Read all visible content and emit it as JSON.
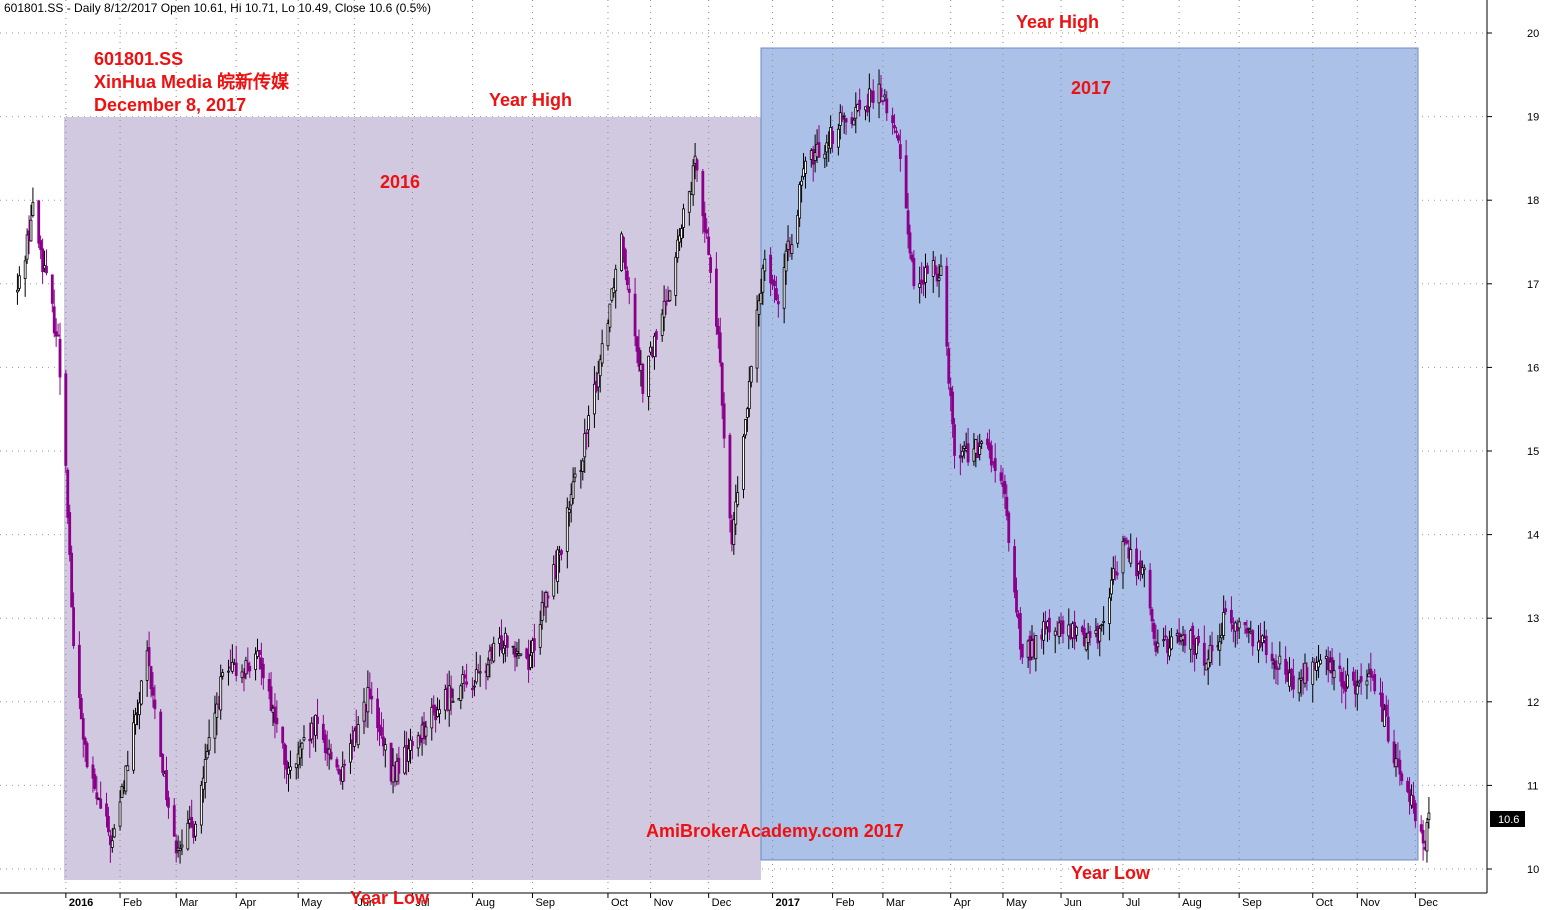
{
  "header": "601801.SS - Daily 8/12/2017 Open 10.61, Hi 10.71, Lo 10.49, Close 10.6 (0.5%)",
  "annotations": {
    "ticker": "601801.SS",
    "company": "XinHua Media 皖新传媒",
    "date": "December 8, 2017",
    "label_2016": "2016",
    "label_2017": "2017",
    "year_high_2016": "Year High",
    "year_high_2017": "Year High",
    "year_low_2016": "Year Low",
    "year_low_2017": "Year Low",
    "watermark": "AmiBrokerAcademy.com  2017"
  },
  "colors": {
    "up_candle": "#000000",
    "down_candle": "#8b008b",
    "zone_2016": "#cfc6de",
    "zone_2017": "#a8bee6",
    "annotation": "#ee1111",
    "last_price_box": "#000000"
  },
  "last_price": "10.6",
  "chart_data": {
    "type": "candlestick",
    "ylim": [
      9.8,
      20.3
    ],
    "y_ticks": [
      "10",
      "11",
      "12",
      "13",
      "14",
      "15",
      "16",
      "17",
      "18",
      "19",
      "20"
    ],
    "x_ticks": [
      "2016",
      "Feb",
      "Mar",
      "Apr",
      "May",
      "Jun",
      "Jul",
      "Aug",
      "Sep",
      "Oct",
      "Nov",
      "Dec",
      "2017",
      "Feb",
      "Mar",
      "Apr",
      "May",
      "Jun",
      "Jul",
      "Aug",
      "Sep",
      "Oct",
      "Nov",
      "Dec"
    ],
    "grid": true,
    "zones": [
      {
        "label": "2016",
        "high": 19.0,
        "low": 9.9
      },
      {
        "label": "2017",
        "high": 19.85,
        "low": 10.1
      }
    ],
    "close_anchors": [
      {
        "date": "2015-12-10",
        "close": 16.9
      },
      {
        "date": "2015-12-18",
        "close": 17.9
      },
      {
        "date": "2015-12-31",
        "close": 16.3
      },
      {
        "date": "2016-01-04",
        "close": 14.9
      },
      {
        "date": "2016-01-08",
        "close": 12.6
      },
      {
        "date": "2016-01-15",
        "close": 11.2
      },
      {
        "date": "2016-01-28",
        "close": 10.3
      },
      {
        "date": "2016-02-15",
        "close": 12.5
      },
      {
        "date": "2016-02-29",
        "close": 10.3
      },
      {
        "date": "2016-03-10",
        "close": 10.5
      },
      {
        "date": "2016-03-25",
        "close": 12.3
      },
      {
        "date": "2016-04-14",
        "close": 12.5
      },
      {
        "date": "2016-04-28",
        "close": 11.1
      },
      {
        "date": "2016-05-12",
        "close": 11.7
      },
      {
        "date": "2016-05-26",
        "close": 11.1
      },
      {
        "date": "2016-06-08",
        "close": 12.1
      },
      {
        "date": "2016-06-20",
        "close": 11.1
      },
      {
        "date": "2016-07-04",
        "close": 11.6
      },
      {
        "date": "2016-07-20",
        "close": 12.1
      },
      {
        "date": "2016-08-05",
        "close": 12.3
      },
      {
        "date": "2016-08-18",
        "close": 12.8
      },
      {
        "date": "2016-08-30",
        "close": 12.5
      },
      {
        "date": "2016-09-14",
        "close": 13.7
      },
      {
        "date": "2016-09-30",
        "close": 15.3
      },
      {
        "date": "2016-10-17",
        "close": 17.6
      },
      {
        "date": "2016-10-28",
        "close": 15.8
      },
      {
        "date": "2016-11-08",
        "close": 16.7
      },
      {
        "date": "2016-11-25",
        "close": 18.5
      },
      {
        "date": "2016-12-05",
        "close": 16.6
      },
      {
        "date": "2016-12-13",
        "close": 13.9
      },
      {
        "date": "2016-12-30",
        "close": 17.4
      },
      {
        "date": "2017-01-06",
        "close": 16.8
      },
      {
        "date": "2017-01-20",
        "close": 18.4
      },
      {
        "date": "2017-02-10",
        "close": 19.0
      },
      {
        "date": "2017-02-28",
        "close": 19.3
      },
      {
        "date": "2017-03-10",
        "close": 18.6
      },
      {
        "date": "2017-03-17",
        "close": 17.0
      },
      {
        "date": "2017-03-31",
        "close": 17.2
      },
      {
        "date": "2017-04-07",
        "close": 15.0
      },
      {
        "date": "2017-04-25",
        "close": 15.0
      },
      {
        "date": "2017-05-03",
        "close": 14.4
      },
      {
        "date": "2017-05-12",
        "close": 12.5
      },
      {
        "date": "2017-05-25",
        "close": 12.9
      },
      {
        "date": "2017-06-09",
        "close": 12.8
      },
      {
        "date": "2017-06-20",
        "close": 12.8
      },
      {
        "date": "2017-07-03",
        "close": 13.9
      },
      {
        "date": "2017-07-14",
        "close": 13.5
      },
      {
        "date": "2017-07-21",
        "close": 12.6
      },
      {
        "date": "2017-08-04",
        "close": 12.8
      },
      {
        "date": "2017-08-15",
        "close": 12.5
      },
      {
        "date": "2017-08-25",
        "close": 13.0
      },
      {
        "date": "2017-09-15",
        "close": 12.7
      },
      {
        "date": "2017-09-29",
        "close": 12.2
      },
      {
        "date": "2017-10-13",
        "close": 12.5
      },
      {
        "date": "2017-10-27",
        "close": 12.2
      },
      {
        "date": "2017-11-10",
        "close": 12.2
      },
      {
        "date": "2017-11-20",
        "close": 11.4
      },
      {
        "date": "2017-11-30",
        "close": 10.8
      },
      {
        "date": "2017-12-05",
        "close": 10.2
      },
      {
        "date": "2017-12-08",
        "close": 10.6
      }
    ]
  }
}
